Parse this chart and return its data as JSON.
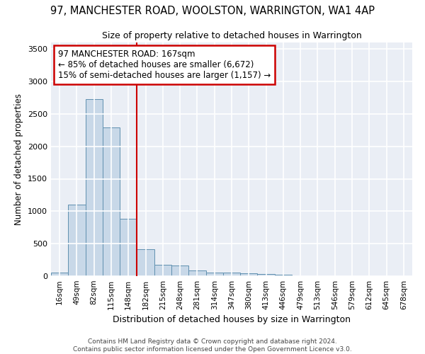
{
  "title_line1": "97, MANCHESTER ROAD, WOOLSTON, WARRINGTON, WA1 4AP",
  "title_line2": "Size of property relative to detached houses in Warrington",
  "xlabel": "Distribution of detached houses by size in Warrington",
  "ylabel": "Number of detached properties",
  "categories": [
    "16sqm",
    "49sqm",
    "82sqm",
    "115sqm",
    "148sqm",
    "182sqm",
    "215sqm",
    "248sqm",
    "281sqm",
    "314sqm",
    "347sqm",
    "380sqm",
    "413sqm",
    "446sqm",
    "479sqm",
    "513sqm",
    "546sqm",
    "579sqm",
    "612sqm",
    "645sqm",
    "678sqm"
  ],
  "values": [
    55,
    1100,
    2730,
    2290,
    880,
    420,
    170,
    165,
    90,
    60,
    55,
    40,
    30,
    20,
    5,
    5,
    5,
    0,
    0,
    0,
    0
  ],
  "bar_color": "#c8d8e8",
  "bar_edge_color": "#6090b0",
  "vline_x_idx": 5,
  "vline_color": "#cc0000",
  "annotation_text": "97 MANCHESTER ROAD: 167sqm\n← 85% of detached houses are smaller (6,672)\n15% of semi-detached houses are larger (1,157) →",
  "annotation_box_color": "#ffffff",
  "annotation_box_edge": "#cc0000",
  "ylim": [
    0,
    3600
  ],
  "yticks": [
    0,
    500,
    1000,
    1500,
    2000,
    2500,
    3000,
    3500
  ],
  "bg_color": "#eaeef5",
  "grid_color": "#ffffff",
  "footer_line1": "Contains HM Land Registry data © Crown copyright and database right 2024.",
  "footer_line2": "Contains public sector information licensed under the Open Government Licence v3.0."
}
